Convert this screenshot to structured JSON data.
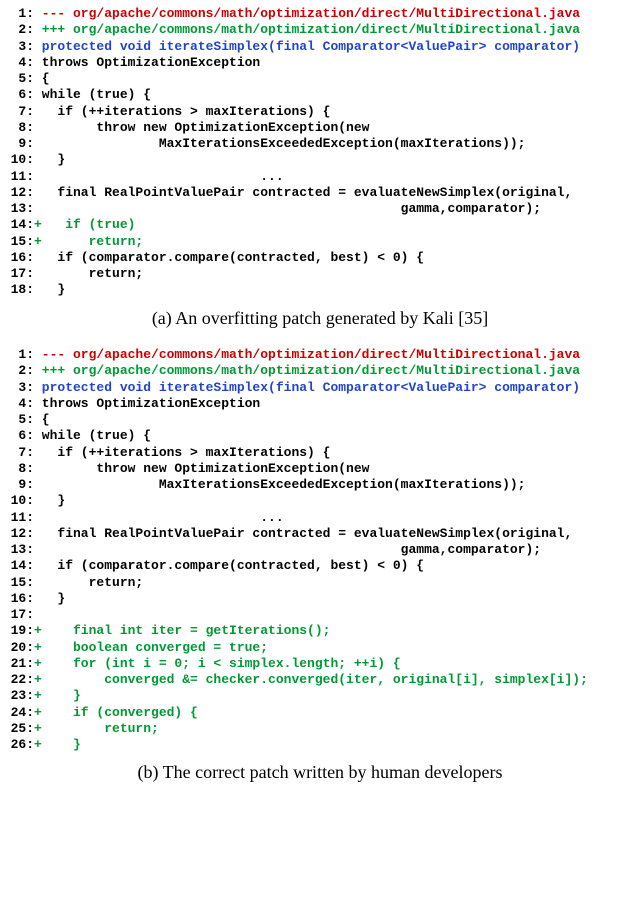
{
  "colors": {
    "red": "#cc0000",
    "green": "#009933",
    "blue": "#2244cc",
    "black": "#000000"
  },
  "blockA": {
    "lines": [
      {
        "n": "1:",
        "marker": " ---",
        "text": "org/apache/commons/math/optimization/direct/MultiDirectional.java",
        "color": "red",
        "bold": true
      },
      {
        "n": "2:",
        "marker": " +++",
        "text": "org/apache/commons/math/optimization/direct/MultiDirectional.java",
        "color": "green",
        "bold": true
      },
      {
        "n": "3:",
        "marker": " ",
        "text": "protected void iterateSimplex(final Comparator<ValuePair> comparator)",
        "color": "blue",
        "bold": true
      },
      {
        "n": "4:",
        "marker": " ",
        "text": "throws OptimizationException",
        "color": "black",
        "bold": true
      },
      {
        "n": "5:",
        "marker": " ",
        "text": "{",
        "color": "black",
        "bold": true
      },
      {
        "n": "6:",
        "marker": " ",
        "text": "while (true) {",
        "color": "black",
        "bold": true
      },
      {
        "n": "7:",
        "marker": " ",
        "text": "  if (++iterations > maxIterations) {",
        "color": "black",
        "bold": true
      },
      {
        "n": "8:",
        "marker": " ",
        "text": "       throw new OptimizationException(new",
        "color": "black",
        "bold": true
      },
      {
        "n": "9:",
        "marker": " ",
        "text": "               MaxIterationsExceededException(maxIterations));",
        "color": "black",
        "bold": true
      },
      {
        "n": "10:",
        "marker": " ",
        "text": "  }",
        "color": "black",
        "bold": true
      },
      {
        "n": "11:",
        "marker": " ",
        "text": "                            ...",
        "color": "black",
        "bold": true
      },
      {
        "n": "12:",
        "marker": " ",
        "text": "  final RealPointValuePair contracted = evaluateNewSimplex(original,",
        "color": "black",
        "bold": true
      },
      {
        "n": "13:",
        "marker": " ",
        "text": "                                              gamma,comparator);",
        "color": "black",
        "bold": true
      },
      {
        "n": "14:",
        "marker": "+",
        "text": "  if (true)",
        "color": "green",
        "bold": true
      },
      {
        "n": "15:",
        "marker": "+",
        "text": "     return;",
        "color": "green",
        "bold": true
      },
      {
        "n": "16:",
        "marker": " ",
        "text": "  if (comparator.compare(contracted, best) < 0) {",
        "color": "black",
        "bold": true
      },
      {
        "n": "17:",
        "marker": " ",
        "text": "      return;",
        "color": "black",
        "bold": true
      },
      {
        "n": "18:",
        "marker": " ",
        "text": "  }",
        "color": "black",
        "bold": true
      }
    ]
  },
  "captionA": "(a) An overfitting patch generated by Kali [35]",
  "blockB": {
    "lines": [
      {
        "n": "1:",
        "marker": " ---",
        "text": "org/apache/commons/math/optimization/direct/MultiDirectional.java",
        "color": "red",
        "bold": true
      },
      {
        "n": "2:",
        "marker": " +++",
        "text": "org/apache/commons/math/optimization/direct/MultiDirectional.java",
        "color": "green",
        "bold": true
      },
      {
        "n": "3:",
        "marker": " ",
        "text": "protected void iterateSimplex(final Comparator<ValuePair> comparator)",
        "color": "blue",
        "bold": true
      },
      {
        "n": "4:",
        "marker": " ",
        "text": "throws OptimizationException",
        "color": "black",
        "bold": true
      },
      {
        "n": "5:",
        "marker": " ",
        "text": "{",
        "color": "black",
        "bold": true
      },
      {
        "n": "6:",
        "marker": " ",
        "text": "while (true) {",
        "color": "black",
        "bold": true
      },
      {
        "n": "7:",
        "marker": " ",
        "text": "  if (++iterations > maxIterations) {",
        "color": "black",
        "bold": true
      },
      {
        "n": "8:",
        "marker": " ",
        "text": "       throw new OptimizationException(new",
        "color": "black",
        "bold": true
      },
      {
        "n": "9:",
        "marker": " ",
        "text": "               MaxIterationsExceededException(maxIterations));",
        "color": "black",
        "bold": true
      },
      {
        "n": "10:",
        "marker": " ",
        "text": "  }",
        "color": "black",
        "bold": true
      },
      {
        "n": "11:",
        "marker": " ",
        "text": "                            ...",
        "color": "black",
        "bold": true
      },
      {
        "n": "12:",
        "marker": " ",
        "text": "  final RealPointValuePair contracted = evaluateNewSimplex(original,",
        "color": "black",
        "bold": true
      },
      {
        "n": "13:",
        "marker": " ",
        "text": "                                              gamma,comparator);",
        "color": "black",
        "bold": true
      },
      {
        "n": "14:",
        "marker": " ",
        "text": "  if (comparator.compare(contracted, best) < 0) {",
        "color": "black",
        "bold": true
      },
      {
        "n": "15:",
        "marker": " ",
        "text": "      return;",
        "color": "black",
        "bold": true
      },
      {
        "n": "16:",
        "marker": " ",
        "text": "  }",
        "color": "black",
        "bold": true
      },
      {
        "n": "17:",
        "marker": " ",
        "text": "",
        "color": "black",
        "bold": true
      },
      {
        "n": "19:",
        "marker": "+",
        "text": "   final int iter = getIterations();",
        "color": "green",
        "bold": true
      },
      {
        "n": "20:",
        "marker": "+",
        "text": "   boolean converged = true;",
        "color": "green",
        "bold": true
      },
      {
        "n": "21:",
        "marker": "+",
        "text": "   for (int i = 0; i < simplex.length; ++i) {",
        "color": "green",
        "bold": true
      },
      {
        "n": "22:",
        "marker": "+",
        "text": "       converged &= checker.converged(iter, original[i], simplex[i]);",
        "color": "green",
        "bold": true
      },
      {
        "n": "23:",
        "marker": "+",
        "text": "   }",
        "color": "green",
        "bold": true
      },
      {
        "n": "24:",
        "marker": "+",
        "text": "   if (converged) {",
        "color": "green",
        "bold": true
      },
      {
        "n": "25:",
        "marker": "+",
        "text": "       return;",
        "color": "green",
        "bold": true
      },
      {
        "n": "26:",
        "marker": "+",
        "text": "   }",
        "color": "green",
        "bold": true
      }
    ]
  },
  "captionB": "(b) The correct patch written by human developers"
}
